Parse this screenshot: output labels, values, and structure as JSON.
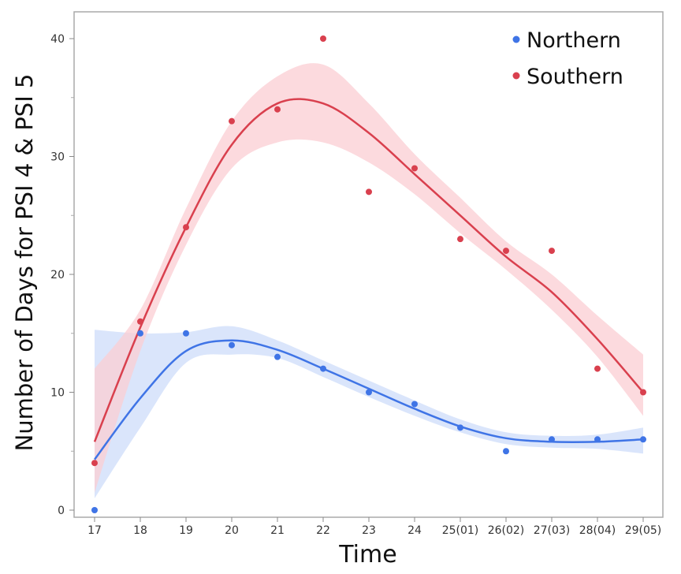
{
  "chart_data": {
    "type": "scatter",
    "title": "",
    "xlabel": "Time",
    "ylabel": "Number of Days for PSI 4 & PSI 5",
    "categories": [
      "17",
      "18",
      "19",
      "20",
      "21",
      "22",
      "23",
      "24",
      "25(01)",
      "26(02)",
      "27(03)",
      "28(04)",
      "29(05)"
    ],
    "ylim": [
      0,
      42
    ],
    "yticks": [
      0,
      10,
      20,
      30,
      40
    ],
    "grid": false,
    "legend_position": "top-right",
    "series": [
      {
        "name": "Northern",
        "color": "#3f74e6",
        "band_color": "#cddcfa",
        "points": [
          0,
          15,
          15,
          14,
          13,
          12,
          10,
          9,
          7,
          5,
          6,
          6,
          6
        ],
        "fit": [
          4.3,
          9.5,
          13.5,
          14.4,
          13.6,
          12.0,
          10.3,
          8.6,
          7.1,
          6.1,
          5.8,
          5.8,
          6.0
        ],
        "band_low": [
          1.0,
          7.0,
          12.5,
          13.2,
          12.9,
          11.3,
          9.6,
          8.0,
          6.6,
          5.6,
          5.3,
          5.2,
          4.8
        ],
        "band_high": [
          15.3,
          15.0,
          15.1,
          15.6,
          14.4,
          12.7,
          11.0,
          9.3,
          7.7,
          6.6,
          6.3,
          6.4,
          7.0
        ]
      },
      {
        "name": "Southern",
        "color": "#d9404e",
        "band_color": "#fbcdd3",
        "points": [
          4,
          16,
          24,
          33,
          34,
          40,
          27,
          29,
          23,
          22,
          22,
          12,
          10
        ],
        "fit": [
          5.8,
          15.5,
          24.0,
          31.0,
          34.5,
          34.5,
          32.0,
          28.5,
          25.0,
          21.5,
          18.5,
          14.5,
          10.0
        ],
        "band_low": [
          1.5,
          13.5,
          22.5,
          29.0,
          31.2,
          31.2,
          29.5,
          26.8,
          23.5,
          20.4,
          17.0,
          13.0,
          8.0
        ],
        "band_high": [
          12.0,
          17.0,
          25.6,
          33.0,
          36.8,
          37.8,
          34.5,
          30.2,
          26.5,
          22.8,
          20.0,
          16.5,
          13.2
        ]
      }
    ]
  }
}
